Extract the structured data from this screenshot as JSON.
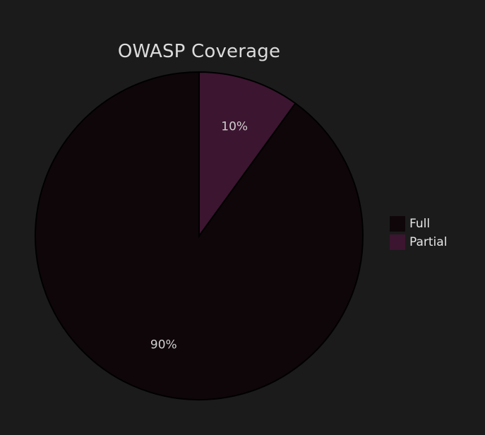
{
  "chart_data": {
    "type": "pie",
    "title": "OWASP Coverage",
    "slices": [
      {
        "name": "Full",
        "value": 90,
        "label": "90%",
        "color": "#0f0609"
      },
      {
        "name": "Partial",
        "value": 10,
        "label": "10%",
        "color": "#3c1530"
      }
    ],
    "start_angle_deg": 0,
    "direction": "counterclockwise",
    "legend_position": "right",
    "stroke_color": "#000000",
    "label_color": "#cfcfcf"
  }
}
